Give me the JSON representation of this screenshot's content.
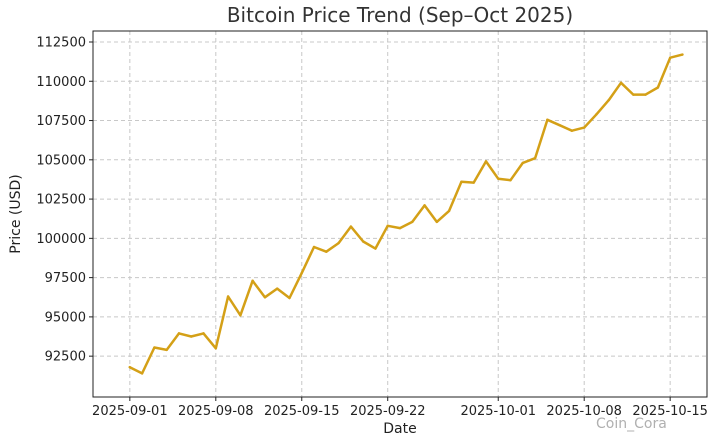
{
  "chart_data": {
    "type": "line",
    "title": "Bitcoin Price Trend (Sep–Oct 2025)",
    "xlabel": "Date",
    "ylabel": "Price (USD)",
    "x_ticks": [
      "2025-09-01",
      "2025-09-08",
      "2025-09-15",
      "2025-09-22",
      "2025-10-01",
      "2025-10-08",
      "2025-10-15"
    ],
    "y_ticks": [
      92500,
      95000,
      97500,
      100000,
      102500,
      105000,
      107500,
      110000,
      112500
    ],
    "ylim": [
      89900,
      113200
    ],
    "xlim": [
      "2025-08-29",
      "2025-10-18"
    ],
    "grid": true,
    "color": "#d4a017",
    "series": [
      {
        "x": [
          "2025-09-01",
          "2025-09-02",
          "2025-09-03",
          "2025-09-04",
          "2025-09-05",
          "2025-09-06",
          "2025-09-07",
          "2025-09-08",
          "2025-09-09",
          "2025-09-10",
          "2025-09-11",
          "2025-09-12",
          "2025-09-13",
          "2025-09-14",
          "2025-09-15",
          "2025-09-16",
          "2025-09-17",
          "2025-09-18",
          "2025-09-19",
          "2025-09-20",
          "2025-09-21",
          "2025-09-22",
          "2025-09-23",
          "2025-09-24",
          "2025-09-25",
          "2025-09-26",
          "2025-09-27",
          "2025-09-28",
          "2025-09-29",
          "2025-09-30",
          "2025-10-01",
          "2025-10-02",
          "2025-10-03",
          "2025-10-04",
          "2025-10-05",
          "2025-10-06",
          "2025-10-07",
          "2025-10-08",
          "2025-10-09",
          "2025-10-10",
          "2025-10-11",
          "2025-10-12",
          "2025-10-13",
          "2025-10-14",
          "2025-10-15",
          "2025-10-16"
        ],
        "values": [
          91800,
          91400,
          93050,
          92900,
          93950,
          93750,
          93950,
          93000,
          96300,
          95100,
          97300,
          96250,
          96800,
          96200,
          97800,
          99450,
          99150,
          99700,
          100750,
          99800,
          99350,
          100800,
          100650,
          101050,
          102100,
          101050,
          101750,
          103600,
          103550,
          104900,
          103800,
          103700,
          104800,
          105100,
          107550,
          107200,
          106850,
          107050,
          107900,
          108800,
          109900,
          109150,
          109150,
          109600,
          111500,
          111700
        ]
      }
    ]
  },
  "watermark": "Coin_Cora"
}
